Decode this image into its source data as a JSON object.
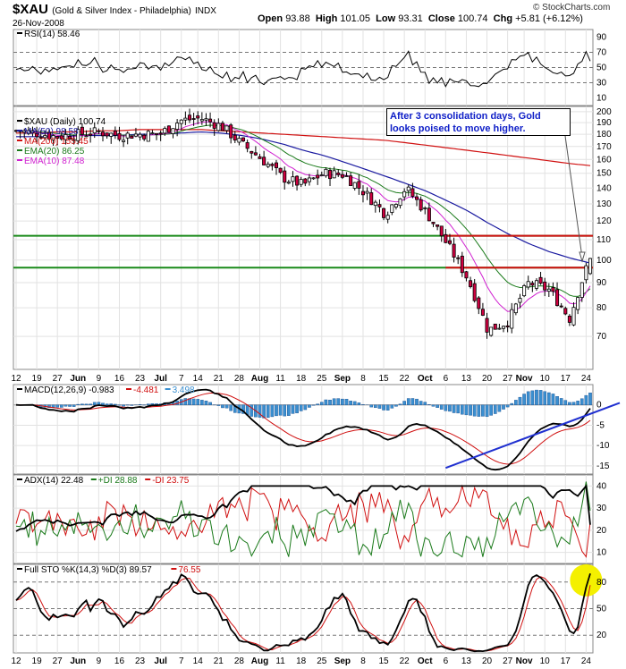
{
  "header": {
    "symbol": "$XAU",
    "name": "(Gold & Silver Index - Philadelphia)",
    "exchange": "INDX",
    "date": "26-Nov-2008",
    "open_label": "Open",
    "open": "93.88",
    "high_label": "High",
    "high": "101.05",
    "low_label": "Low",
    "low": "93.31",
    "close_label": "Close",
    "close": "100.74",
    "chg_label": "Chg",
    "chg": "+5.81 (+6.12%)",
    "copyright": "© StockCharts.com"
  },
  "annotation": "After 3 consolidation days, Gold looks poised to move higher.",
  "chart_data": [
    {
      "type": "line",
      "panel": "rsi",
      "legend": [
        {
          "label": "RSI(14) 58.46",
          "color": "#000000"
        }
      ],
      "yticks": [
        10,
        30,
        50,
        70,
        90
      ],
      "reference_lines": [
        30,
        50,
        70
      ],
      "ylim": [
        0,
        100
      ]
    },
    {
      "type": "candlestick",
      "panel": "price",
      "legend": [
        {
          "label": "$XAU (Daily) 100.74",
          "color": "#000000"
        },
        {
          "label": "MA(50) 98.58",
          "color": "#1a1aa0"
        },
        {
          "label": "MA(200) 155.45",
          "color": "#d01010"
        },
        {
          "label": "EMA(20) 86.25",
          "color": "#1a7a1a"
        },
        {
          "label": "EMA(10) 87.48",
          "color": "#d020d0"
        }
      ],
      "yscale": "log",
      "ylim": [
        60,
        205
      ],
      "yticks": [
        70,
        80,
        90,
        100,
        110,
        120,
        130,
        140,
        150,
        160,
        170,
        180,
        190,
        200
      ],
      "horizontal_lines": [
        {
          "value": 112,
          "color": "#1a8a1a"
        },
        {
          "value": 96.5,
          "color": "#1a8a1a"
        },
        {
          "value": 112,
          "color": "#d01010"
        },
        {
          "value": 96.5,
          "color": "#d01010"
        }
      ],
      "xticks": [
        "12",
        "19",
        "27",
        "Jun",
        "9",
        "16",
        "23",
        "Jul",
        "7",
        "14",
        "21",
        "28",
        "Aug",
        "11",
        "18",
        "25",
        "Sep",
        "8",
        "15",
        "22",
        "Oct",
        "6",
        "13",
        "20",
        "27",
        "Nov",
        "10",
        "17",
        "24"
      ],
      "close_by_week": [
        183,
        181,
        178,
        180,
        182,
        179,
        180,
        180,
        192,
        194,
        187,
        172,
        160,
        147,
        142,
        150,
        149,
        137,
        124,
        140,
        125,
        108,
        92,
        72,
        75,
        90,
        87,
        76,
        100.74
      ],
      "ma200_by_week": [
        181,
        181,
        182,
        182,
        183,
        183,
        184,
        184,
        184,
        184,
        183,
        182,
        181,
        180,
        179,
        178,
        177,
        176,
        175,
        173,
        171,
        169,
        167,
        165,
        163,
        161,
        159,
        157,
        155.45
      ],
      "ma50_by_week": [
        178,
        178,
        178,
        179,
        179,
        179,
        180,
        180,
        181,
        182,
        181,
        179,
        176,
        172,
        167,
        163,
        158,
        153,
        148,
        143,
        138,
        132,
        126,
        119,
        113,
        108,
        104,
        101,
        98.58
      ]
    },
    {
      "type": "line",
      "panel": "macd",
      "legend": [
        {
          "label": "MACD(12,26,9) -0.983",
          "color": "#000000"
        },
        {
          "label": "-4.481",
          "color": "#d01010"
        },
        {
          "label": "3.498",
          "color": "#3a8fd0"
        }
      ],
      "yticks": [
        -15,
        -10,
        -5,
        0
      ],
      "ylim": [
        -17,
        5
      ]
    },
    {
      "type": "line",
      "panel": "adx",
      "legend": [
        {
          "label": "ADX(14) 22.48",
          "color": "#000000"
        },
        {
          "label": "+DI 28.88",
          "color": "#1a7a1a"
        },
        {
          "label": "-DI 23.75",
          "color": "#d01010"
        }
      ],
      "yticks": [
        10,
        20,
        30,
        40
      ],
      "ylim": [
        5,
        45
      ]
    },
    {
      "type": "line",
      "panel": "sto",
      "legend": [
        {
          "label": "Full STO %K(14,3) %D(3) 89.57",
          "color": "#000000"
        },
        {
          "label": "76.55",
          "color": "#d01010"
        }
      ],
      "yticks": [
        20,
        50,
        80
      ],
      "reference_lines": [
        20,
        50,
        80
      ],
      "ylim": [
        0,
        100
      ]
    }
  ]
}
